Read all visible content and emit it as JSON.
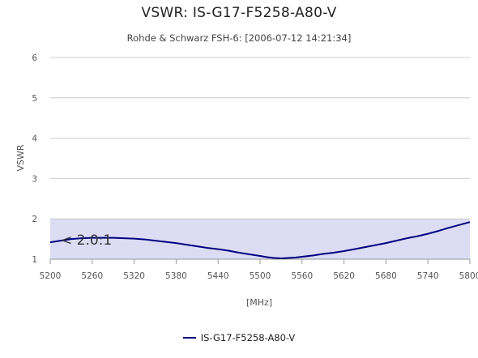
{
  "chart_data": {
    "type": "line",
    "title": "VSWR: IS-G17-F5258-A80-V",
    "subtitle": "Rohde & Schwarz FSH-6: [2006-07-12 14:21:34]",
    "xlabel": "[MHz]",
    "ylabel": "VSWR",
    "xlim": [
      5200,
      5800
    ],
    "ylim": [
      1,
      6
    ],
    "x_ticks": [
      "5200",
      "5260",
      "5320",
      "5380",
      "5440",
      "5500",
      "5560",
      "5620",
      "5680",
      "5740",
      "5800"
    ],
    "y_ticks": [
      "1",
      "2",
      "3",
      "4",
      "5",
      "6"
    ],
    "grid": "horizontal",
    "threshold_band": [
      1,
      2
    ],
    "annotation": "< 2.0:1",
    "legend_position": "bottom",
    "colors": {
      "line": "#000080",
      "band": "#dcdcf5",
      "grid": "#cccccc"
    },
    "series": [
      {
        "name": "IS-G17-F5258-A80-V",
        "x": [
          5200,
          5215,
          5230,
          5245,
          5260,
          5275,
          5290,
          5305,
          5320,
          5335,
          5350,
          5365,
          5380,
          5395,
          5410,
          5425,
          5440,
          5455,
          5470,
          5485,
          5500,
          5510,
          5520,
          5530,
          5540,
          5550,
          5560,
          5575,
          5590,
          5605,
          5620,
          5635,
          5650,
          5665,
          5680,
          5695,
          5710,
          5725,
          5740,
          5755,
          5770,
          5785,
          5800
        ],
        "y": [
          1.42,
          1.46,
          1.5,
          1.52,
          1.53,
          1.53,
          1.53,
          1.52,
          1.51,
          1.49,
          1.46,
          1.43,
          1.4,
          1.36,
          1.32,
          1.28,
          1.25,
          1.21,
          1.16,
          1.12,
          1.08,
          1.05,
          1.03,
          1.02,
          1.03,
          1.04,
          1.06,
          1.09,
          1.13,
          1.16,
          1.2,
          1.25,
          1.3,
          1.35,
          1.4,
          1.46,
          1.52,
          1.57,
          1.63,
          1.7,
          1.78,
          1.85,
          1.92
        ]
      }
    ]
  }
}
